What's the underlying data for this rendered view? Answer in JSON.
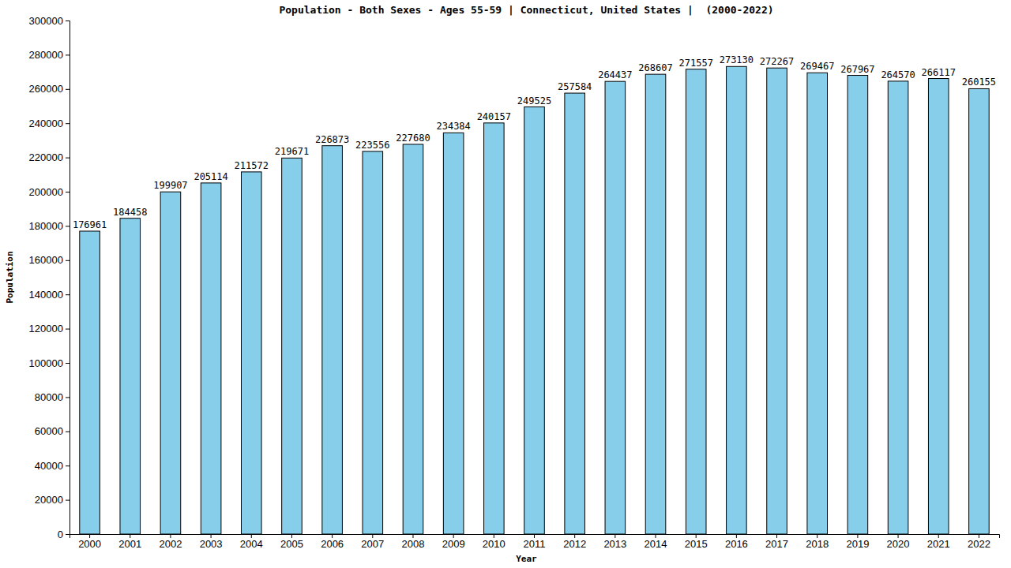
{
  "chart_data": {
    "type": "bar",
    "title": "Population - Both Sexes - Ages 55-59 | Connecticut, United States |  (2000-2022)",
    "x_label": "Year",
    "y_label": "Population",
    "categories": [
      "2000",
      "2001",
      "2002",
      "2003",
      "2004",
      "2005",
      "2006",
      "2007",
      "2008",
      "2009",
      "2010",
      "2011",
      "2012",
      "2013",
      "2014",
      "2015",
      "2016",
      "2017",
      "2018",
      "2019",
      "2020",
      "2021",
      "2022"
    ],
    "values": [
      176961,
      184458,
      199907,
      205114,
      211572,
      219671,
      226873,
      223556,
      227680,
      234384,
      240157,
      249525,
      257584,
      264437,
      268607,
      271557,
      273130,
      272267,
      269467,
      267967,
      264570,
      266117,
      260155
    ],
    "color": "#87ceeb",
    "ylim": [
      0,
      300000
    ],
    "yticks": [
      0,
      20000,
      40000,
      60000,
      80000,
      100000,
      120000,
      140000,
      160000,
      180000,
      200000,
      220000,
      240000,
      260000,
      280000,
      300000
    ],
    "grid": false,
    "data_labels": true
  }
}
